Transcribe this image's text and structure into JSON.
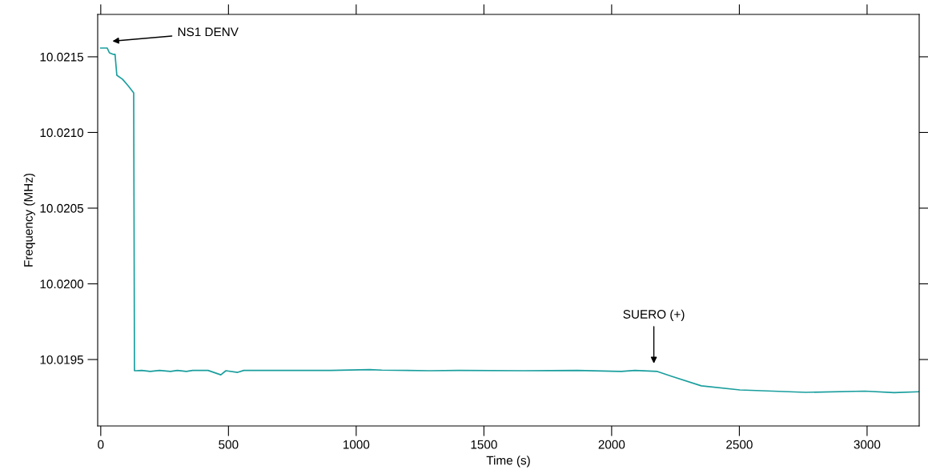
{
  "chart_data": {
    "type": "line",
    "xlabel": "Time (s)",
    "ylabel": "Frequency (MHz)",
    "x": [
      0,
      25,
      34,
      50,
      56,
      63,
      85,
      107,
      129,
      132,
      138,
      160,
      194,
      230,
      273,
      300,
      335,
      360,
      420,
      470,
      490,
      536,
      560,
      700,
      900,
      1053,
      1100,
      1288,
      1400,
      1655,
      1865,
      2038,
      2091,
      2179,
      2235,
      2351,
      2502,
      2759,
      2991,
      3106,
      3204
    ],
    "series": [
      {
        "color": "#1a9e9e",
        "values": [
          10.021558,
          10.021558,
          10.021526,
          10.021516,
          10.021516,
          10.021378,
          10.021352,
          10.021309,
          10.021262,
          10.019426,
          10.019426,
          10.019428,
          10.019421,
          10.019428,
          10.019421,
          10.019428,
          10.019421,
          10.019428,
          10.019428,
          10.019399,
          10.019426,
          10.019415,
          10.019428,
          10.019428,
          10.019428,
          10.019433,
          10.01943,
          10.019426,
          10.019428,
          10.019426,
          10.019428,
          10.019421,
          10.019428,
          10.019421,
          10.019389,
          10.019326,
          10.019299,
          10.019283,
          10.019291,
          10.019281,
          10.019287
        ]
      }
    ],
    "annotations": [
      "NS1 DENV",
      "SUERO (+)"
    ],
    "xlim": [
      -12,
      3204
    ],
    "ylim": [
      10.019061,
      10.02178
    ],
    "xticks": [
      0,
      500,
      1000,
      1500,
      2000,
      2500,
      3000
    ],
    "yticks": [
      {
        "value": 10.0195,
        "label": "10.0195"
      },
      {
        "value": 10.02,
        "label": "10.0200"
      },
      {
        "value": 10.0205,
        "label": "10.0205"
      },
      {
        "value": 10.021,
        "label": "10.0210"
      },
      {
        "value": 10.0215,
        "label": "10.0215"
      }
    ],
    "grid": false,
    "marker": "none",
    "line_style": "solid"
  }
}
